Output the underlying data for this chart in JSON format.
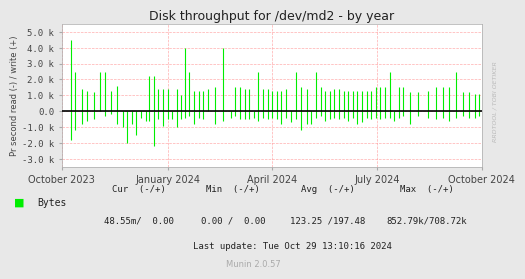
{
  "title": "Disk throughput for /dev/md2 - by year",
  "ylabel": "Pr second read (-) / write (+)",
  "background_color": "#e8e8e8",
  "plot_bg_color": "#ffffff",
  "grid_color": "#ff9999",
  "bar_color": "#00ee00",
  "ylim": [
    -3500,
    5500
  ],
  "yticks": [
    -3000,
    -2000,
    -1000,
    0,
    1000,
    2000,
    3000,
    4000,
    5000
  ],
  "ytick_labels": [
    "-3.0 k",
    "-2.0 k",
    "-1.0 k",
    "0.0",
    "1.0 k",
    "2.0 k",
    "3.0 k",
    "4.0 k",
    "5.0 k"
  ],
  "legend_label": "Bytes",
  "cur_label": "Cur  (-/+)",
  "min_label": "Min  (-/+)",
  "avg_label": "Avg  (-/+)",
  "max_label": "Max  (-/+)",
  "cur_val": "48.55m/  0.00",
  "min_val": "0.00 /  0.00",
  "avg_val": "123.25 /197.48",
  "max_val": "852.79k/708.72k",
  "last_update": "Last update: Tue Oct 29 13:10:16 2024",
  "munin_version": "Munin 2.0.57",
  "rrdtool_label": "RRDTOOL / TOBI OETIKER",
  "x_start": 0,
  "x_end": 365,
  "xtick_positions": [
    0,
    92,
    183,
    274,
    365
  ],
  "xtick_labels": [
    "October 2023",
    "January 2024",
    "April 2024",
    "July 2024",
    "October 2024"
  ],
  "spike_data": [
    [
      8,
      -1800,
      4500
    ],
    [
      12,
      -1200,
      2500
    ],
    [
      18,
      -800,
      1400
    ],
    [
      22,
      -600,
      1300
    ],
    [
      28,
      -500,
      1200
    ],
    [
      33,
      0,
      2500
    ],
    [
      38,
      -300,
      2500
    ],
    [
      43,
      -200,
      1300
    ],
    [
      48,
      -800,
      1600
    ],
    [
      53,
      -1000,
      0
    ],
    [
      57,
      -2000,
      0
    ],
    [
      61,
      -800,
      0
    ],
    [
      65,
      -1500,
      0
    ],
    [
      69,
      -400,
      0
    ],
    [
      73,
      -600,
      0
    ],
    [
      76,
      -600,
      2200
    ],
    [
      80,
      -2200,
      2200
    ],
    [
      84,
      -500,
      1400
    ],
    [
      88,
      -900,
      1400
    ],
    [
      92,
      -500,
      1400
    ],
    [
      96,
      -500,
      0
    ],
    [
      100,
      -1000,
      1400
    ],
    [
      104,
      -500,
      1000
    ],
    [
      107,
      -400,
      4000
    ],
    [
      111,
      -300,
      2500
    ],
    [
      115,
      -800,
      1300
    ],
    [
      119,
      -400,
      1300
    ],
    [
      123,
      -500,
      1300
    ],
    [
      127,
      0,
      1400
    ],
    [
      133,
      -800,
      1500
    ],
    [
      140,
      -600,
      4000
    ],
    [
      147,
      -400,
      0
    ],
    [
      151,
      -300,
      1500
    ],
    [
      155,
      -500,
      1500
    ],
    [
      159,
      -500,
      1400
    ],
    [
      163,
      -500,
      1400
    ],
    [
      167,
      -400,
      0
    ],
    [
      171,
      -600,
      2500
    ],
    [
      175,
      -400,
      1400
    ],
    [
      179,
      -500,
      1400
    ],
    [
      183,
      -400,
      1300
    ],
    [
      187,
      -500,
      1300
    ],
    [
      191,
      -800,
      1300
    ],
    [
      195,
      -400,
      1400
    ],
    [
      199,
      -700,
      0
    ],
    [
      204,
      -500,
      2500
    ],
    [
      208,
      -1200,
      1500
    ],
    [
      213,
      -800,
      1400
    ],
    [
      217,
      -800,
      0
    ],
    [
      221,
      -400,
      2500
    ],
    [
      225,
      -300,
      1500
    ],
    [
      229,
      -600,
      1300
    ],
    [
      233,
      -500,
      1300
    ],
    [
      237,
      -400,
      1400
    ],
    [
      241,
      -500,
      1400
    ],
    [
      245,
      -400,
      1300
    ],
    [
      249,
      -600,
      1300
    ],
    [
      253,
      -400,
      1300
    ],
    [
      257,
      -800,
      1300
    ],
    [
      261,
      -700,
      1300
    ],
    [
      265,
      -400,
      1300
    ],
    [
      269,
      -500,
      1300
    ],
    [
      273,
      -400,
      1500
    ],
    [
      277,
      -500,
      1500
    ],
    [
      281,
      -400,
      1500
    ],
    [
      285,
      -400,
      2500
    ],
    [
      289,
      -600,
      0
    ],
    [
      293,
      -400,
      1500
    ],
    [
      297,
      -300,
      1500
    ],
    [
      303,
      -800,
      1200
    ],
    [
      310,
      -300,
      1200
    ],
    [
      318,
      -400,
      1300
    ],
    [
      325,
      -500,
      1500
    ],
    [
      331,
      -400,
      1500
    ],
    [
      337,
      -600,
      1500
    ],
    [
      343,
      -400,
      2500
    ],
    [
      349,
      -300,
      1200
    ],
    [
      354,
      -400,
      1200
    ],
    [
      359,
      -400,
      1100
    ],
    [
      363,
      -300,
      1100
    ]
  ]
}
